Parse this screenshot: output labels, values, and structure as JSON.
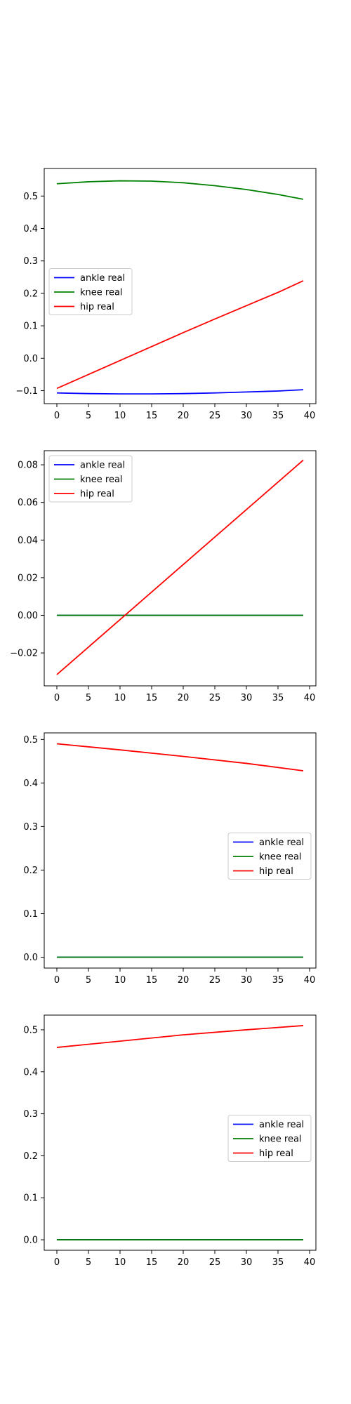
{
  "chart_data": [
    {
      "type": "line",
      "x": [
        0,
        39
      ],
      "xlim": [
        -2,
        41
      ],
      "ylim": [
        -0.14,
        0.585
      ],
      "xticks": [
        0,
        5,
        10,
        15,
        20,
        25,
        30,
        35,
        40
      ],
      "yticks": [
        -0.1,
        0.0,
        0.1,
        0.2,
        0.3,
        0.4,
        0.5
      ],
      "ytick_labels": [
        "−0.1",
        "0.0",
        "0.1",
        "0.2",
        "0.3",
        "0.4",
        "0.5"
      ],
      "legend": "center-left",
      "series": [
        {
          "name": "ankle real",
          "color": "#0000ff",
          "points": [
            [
              0,
              -0.107
            ],
            [
              5,
              -0.109
            ],
            [
              10,
              -0.11
            ],
            [
              15,
              -0.11
            ],
            [
              20,
              -0.109
            ],
            [
              25,
              -0.107
            ],
            [
              30,
              -0.104
            ],
            [
              35,
              -0.101
            ],
            [
              39,
              -0.097
            ]
          ]
        },
        {
          "name": "knee real",
          "color": "#008000",
          "points": [
            [
              0,
              0.538
            ],
            [
              5,
              0.544
            ],
            [
              10,
              0.547
            ],
            [
              15,
              0.546
            ],
            [
              20,
              0.541
            ],
            [
              25,
              0.532
            ],
            [
              30,
              0.52
            ],
            [
              35,
              0.505
            ],
            [
              39,
              0.49
            ]
          ]
        },
        {
          "name": "hip real",
          "color": "#ff0000",
          "points": [
            [
              0,
              -0.093
            ],
            [
              5,
              -0.05
            ],
            [
              10,
              -0.007
            ],
            [
              15,
              0.036
            ],
            [
              20,
              0.079
            ],
            [
              25,
              0.121
            ],
            [
              30,
              0.162
            ],
            [
              35,
              0.203
            ],
            [
              39,
              0.239
            ]
          ]
        }
      ]
    },
    {
      "type": "line",
      "x": [
        0,
        39
      ],
      "xlim": [
        -2,
        41
      ],
      "ylim": [
        -0.0375,
        0.0875
      ],
      "xticks": [
        0,
        5,
        10,
        15,
        20,
        25,
        30,
        35,
        40
      ],
      "yticks": [
        -0.02,
        0.0,
        0.02,
        0.04,
        0.06,
        0.08
      ],
      "ytick_labels": [
        "−0.02",
        "0.00",
        "0.02",
        "0.04",
        "0.06",
        "0.08"
      ],
      "legend": "top-left",
      "series": [
        {
          "name": "ankle real",
          "color": "#0000ff",
          "points": [
            [
              0,
              0.0
            ],
            [
              39,
              0.0
            ]
          ]
        },
        {
          "name": "knee real",
          "color": "#008000",
          "points": [
            [
              0,
              0.0
            ],
            [
              39,
              0.0
            ]
          ]
        },
        {
          "name": "hip real",
          "color": "#ff0000",
          "points": [
            [
              0,
              -0.0315
            ],
            [
              39,
              0.0825
            ]
          ]
        }
      ]
    },
    {
      "type": "line",
      "x": [
        0,
        39
      ],
      "xlim": [
        -2,
        41
      ],
      "ylim": [
        -0.025,
        0.515
      ],
      "xticks": [
        0,
        5,
        10,
        15,
        20,
        25,
        30,
        35,
        40
      ],
      "yticks": [
        0.0,
        0.1,
        0.2,
        0.3,
        0.4,
        0.5
      ],
      "ytick_labels": [
        "0.0",
        "0.1",
        "0.2",
        "0.3",
        "0.4",
        "0.5"
      ],
      "legend": "center-right",
      "series": [
        {
          "name": "ankle real",
          "color": "#0000ff",
          "points": [
            [
              0,
              0.0
            ],
            [
              39,
              0.0
            ]
          ]
        },
        {
          "name": "knee real",
          "color": "#008000",
          "points": [
            [
              0,
              0.0
            ],
            [
              39,
              0.0
            ]
          ]
        },
        {
          "name": "hip real",
          "color": "#ff0000",
          "points": [
            [
              0,
              0.49
            ],
            [
              10,
              0.476
            ],
            [
              20,
              0.461
            ],
            [
              30,
              0.445
            ],
            [
              39,
              0.428
            ]
          ]
        }
      ]
    },
    {
      "type": "line",
      "x": [
        0,
        39
      ],
      "xlim": [
        -2,
        41
      ],
      "ylim": [
        -0.025,
        0.535
      ],
      "xticks": [
        0,
        5,
        10,
        15,
        20,
        25,
        30,
        35,
        40
      ],
      "yticks": [
        0.0,
        0.1,
        0.2,
        0.3,
        0.4,
        0.5
      ],
      "ytick_labels": [
        "0.0",
        "0.1",
        "0.2",
        "0.3",
        "0.4",
        "0.5"
      ],
      "legend": "center-right",
      "series": [
        {
          "name": "ankle real",
          "color": "#0000ff",
          "points": [
            [
              0,
              0.0
            ],
            [
              39,
              0.0
            ]
          ]
        },
        {
          "name": "knee real",
          "color": "#008000",
          "points": [
            [
              0,
              0.0
            ],
            [
              39,
              0.0
            ]
          ]
        },
        {
          "name": "hip real",
          "color": "#ff0000",
          "points": [
            [
              0,
              0.458
            ],
            [
              10,
              0.473
            ],
            [
              20,
              0.488
            ],
            [
              30,
              0.5
            ],
            [
              39,
              0.51
            ]
          ]
        }
      ]
    }
  ]
}
